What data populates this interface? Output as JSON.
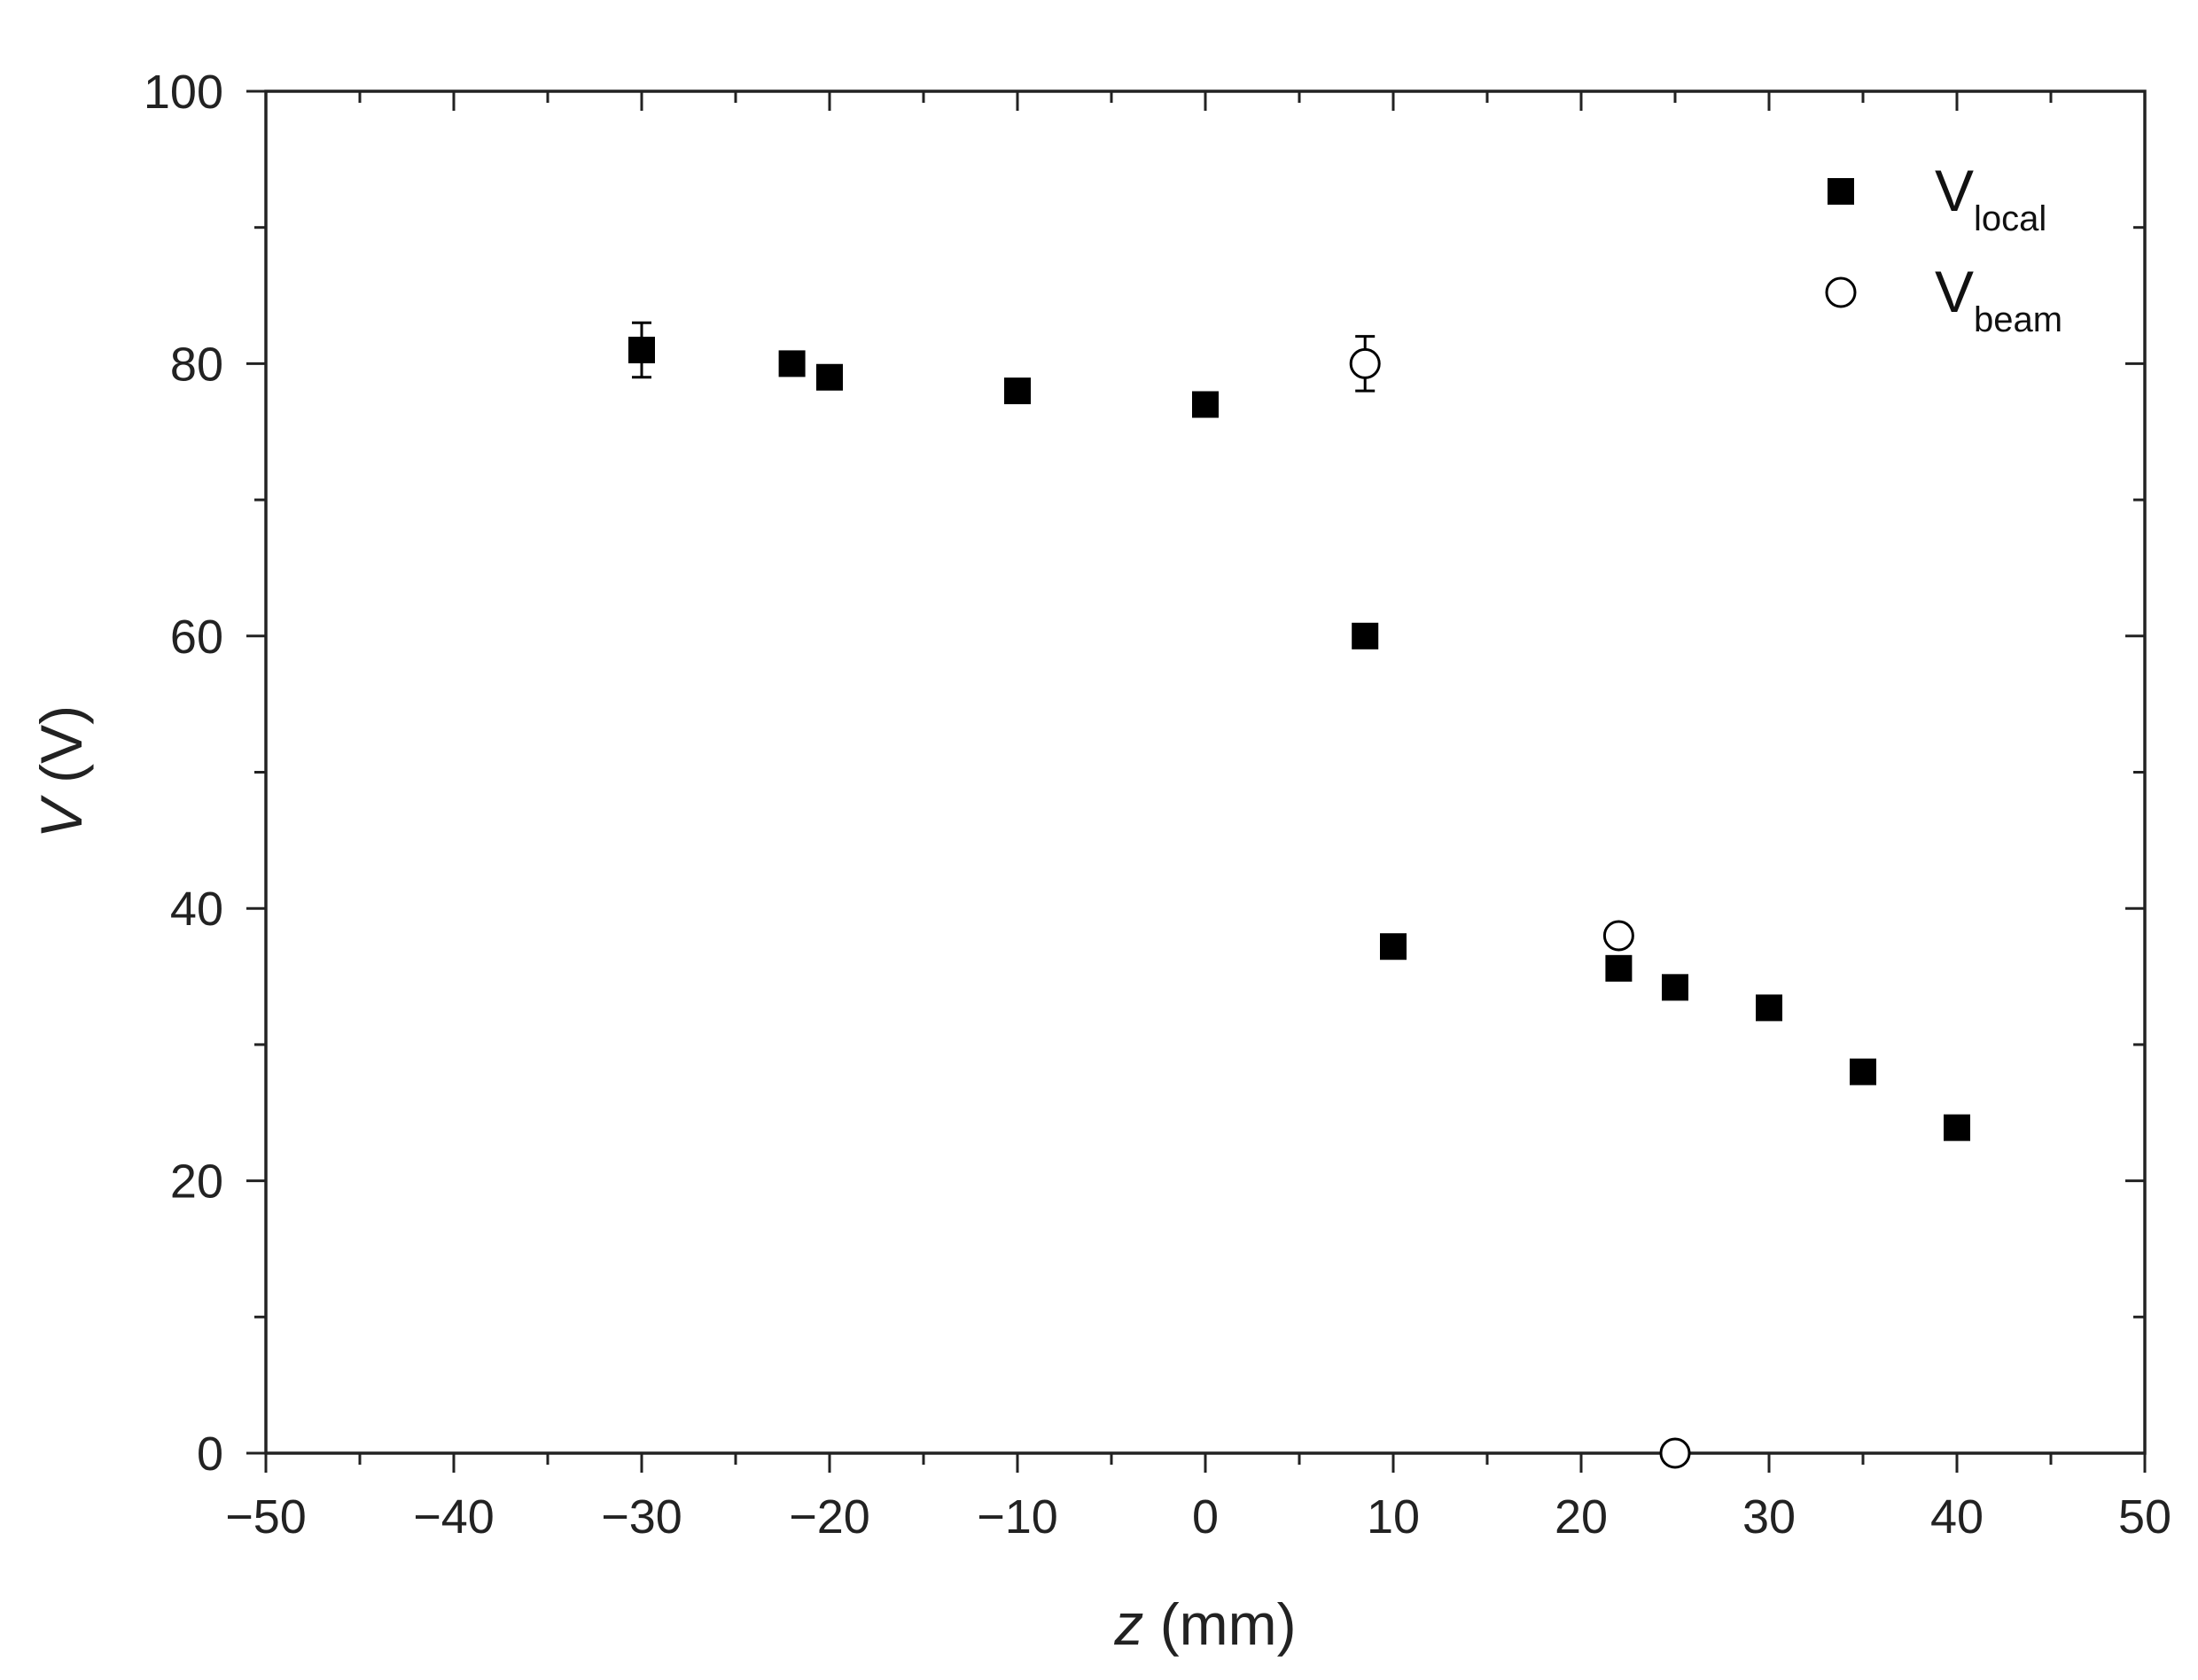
{
  "chart_data": {
    "type": "scatter",
    "xlabel": {
      "italic": "z",
      "rest": " (mm)"
    },
    "ylabel": {
      "italic": "V",
      "rest": " (V)"
    },
    "xlim": [
      -50,
      50
    ],
    "ylim": [
      0,
      100
    ],
    "x_ticks": [
      -50,
      -40,
      -30,
      -20,
      -10,
      0,
      10,
      20,
      30,
      40,
      50
    ],
    "x_tick_labels": [
      "−50",
      "−40",
      "−30",
      "−20",
      "−10",
      "0",
      "10",
      "20",
      "30",
      "40",
      "50"
    ],
    "y_ticks": [
      0,
      20,
      40,
      60,
      80,
      100
    ],
    "y_tick_labels": [
      "0",
      "20",
      "40",
      "60",
      "80",
      "100"
    ],
    "grid": false,
    "legend_position": "top-right",
    "series": [
      {
        "name_main": "V",
        "name_sub": "local",
        "marker": "filled-square",
        "color": "#000000",
        "points": [
          {
            "x": -30,
            "y": 81,
            "err": 2
          },
          {
            "x": -22,
            "y": 80
          },
          {
            "x": -20,
            "y": 79
          },
          {
            "x": -10,
            "y": 78
          },
          {
            "x": 0,
            "y": 77
          },
          {
            "x": 8.5,
            "y": 60
          },
          {
            "x": 10,
            "y": 37.2
          },
          {
            "x": 22,
            "y": 35.6
          },
          {
            "x": 25,
            "y": 34.2
          },
          {
            "x": 30,
            "y": 32.7
          },
          {
            "x": 35,
            "y": 28
          },
          {
            "x": 40,
            "y": 23.9
          }
        ]
      },
      {
        "name_main": "V",
        "name_sub": "beam",
        "marker": "open-circle",
        "color": "#000000",
        "points": [
          {
            "x": 8.5,
            "y": 80,
            "err": 2
          },
          {
            "x": 22,
            "y": 38
          },
          {
            "x": 25,
            "y": 0
          }
        ]
      }
    ]
  }
}
